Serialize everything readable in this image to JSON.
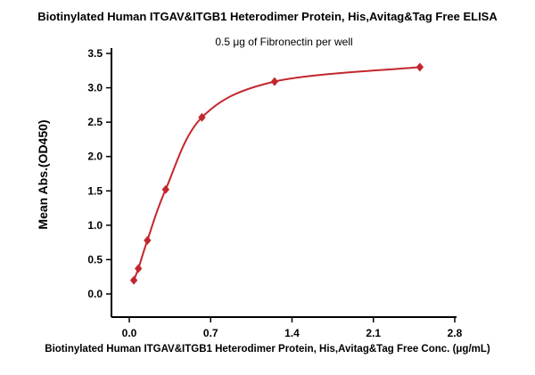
{
  "chart_data": {
    "type": "scatter",
    "title": "Biotinylated Human ITGAV&ITGB1 Heterodimer Protein, His,Avitag&Tag Free ELISA",
    "subtitle": "0.5 μg of Fibronectin per well",
    "xlabel": "Biotinylated Human ITGAV&ITGB1 Heterodimer Protein, His,Avitag&Tag Free Conc. (μg/mL)",
    "ylabel": "Mean Abs.(OD450)",
    "x": [
      0.039,
      0.078,
      0.156,
      0.313,
      0.625,
      1.25,
      2.5
    ],
    "y": [
      0.2,
      0.37,
      0.78,
      1.52,
      2.57,
      3.09,
      3.3
    ],
    "xlim": [
      0,
      2.8
    ],
    "ylim": [
      0,
      3.5
    ],
    "xticks": [
      0.0,
      0.7,
      1.4,
      2.1,
      2.8
    ],
    "yticks": [
      0.0,
      0.5,
      1.0,
      1.5,
      2.0,
      2.5,
      3.0,
      3.5
    ],
    "line_color": "#c2272d",
    "marker": "diamond",
    "grid": false,
    "legend": null
  }
}
